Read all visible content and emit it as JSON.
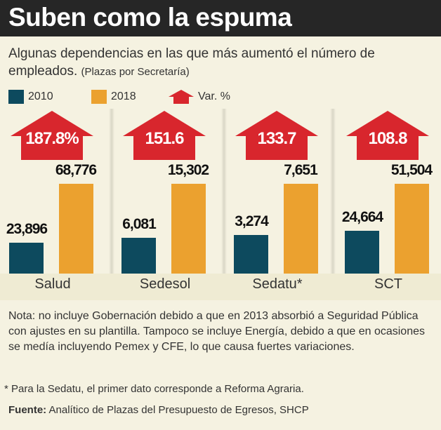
{
  "title": "Suben como la espuma",
  "subtitle": "Algunas dependencias en las que más aumentó el número de empleados.",
  "subtitle_paren": "(Plazas por Secretaría)",
  "legend": [
    {
      "label": "2010",
      "color": "#0d4a5e"
    },
    {
      "label": "2018",
      "color": "#eba12f"
    },
    {
      "label": "Var. %",
      "color": "#d8262d",
      "icon": "up-arrow-icon"
    }
  ],
  "chart_data": {
    "type": "bar",
    "categories": [
      "Salud",
      "Sedesol",
      "Sedatu*",
      "SCT"
    ],
    "series": [
      {
        "name": "2010",
        "values": [
          23896,
          6081,
          3274,
          24664
        ],
        "labels": [
          "23,896",
          "6,081",
          "3,274",
          "24,664"
        ]
      },
      {
        "name": "2018",
        "values": [
          68776,
          15302,
          7651,
          51504
        ],
        "labels": [
          "68,776",
          "15,302",
          "7,651",
          "51,504"
        ]
      }
    ],
    "variation_labels": [
      "187.8%",
      "151.6",
      "133.7",
      "108.8"
    ],
    "scale": "each category scaled independently to its 2018 value"
  },
  "note": "Nota: no incluye Gobernación debido a que en 2013 absorbió a Seguridad Pública con ajustes en su plantilla. Tampoco se incluye Energía, debido a que en ocasiones se medía incluyendo Pemex y CFE, lo que causa fuertes variaciones.",
  "footnote": "* Para la Sedatu, el primer dato corresponde a Reforma Agraria.",
  "source_label": "Fuente:",
  "source": "Analítico de Plazas del Presupuesto de Egresos, SHCP"
}
